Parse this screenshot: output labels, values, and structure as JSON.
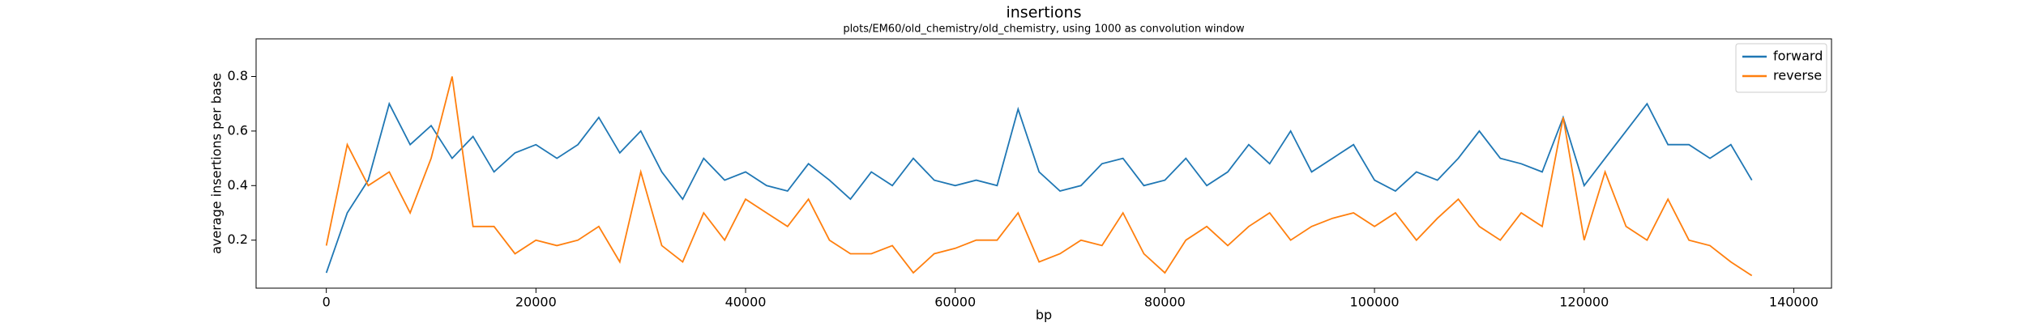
{
  "chart_data": {
    "type": "line",
    "title": "insertions",
    "subtitle": "plots/EM60/old_chemistry/old_chemistry, using 1000 as convolution window",
    "x_label": "bp",
    "y_label": "average insertions per base",
    "x": [
      0,
      2000,
      4000,
      6000,
      8000,
      10000,
      12000,
      14000,
      16000,
      18000,
      20000,
      22000,
      24000,
      26000,
      28000,
      30000,
      32000,
      34000,
      36000,
      38000,
      40000,
      42000,
      44000,
      46000,
      48000,
      50000,
      52000,
      54000,
      56000,
      58000,
      60000,
      62000,
      64000,
      66000,
      68000,
      70000,
      72000,
      74000,
      76000,
      78000,
      80000,
      82000,
      84000,
      86000,
      88000,
      90000,
      92000,
      94000,
      96000,
      98000,
      100000,
      102000,
      104000,
      106000,
      108000,
      110000,
      112000,
      114000,
      116000,
      118000,
      120000,
      122000,
      124000,
      126000,
      128000,
      130000,
      132000,
      134000,
      136000
    ],
    "series": [
      {
        "name": "forward",
        "color": "#1f77b4",
        "values": [
          0.08,
          0.3,
          0.42,
          0.7,
          0.55,
          0.62,
          0.5,
          0.58,
          0.45,
          0.52,
          0.55,
          0.5,
          0.55,
          0.65,
          0.52,
          0.6,
          0.45,
          0.35,
          0.5,
          0.42,
          0.45,
          0.4,
          0.38,
          0.48,
          0.42,
          0.35,
          0.45,
          0.4,
          0.5,
          0.42,
          0.4,
          0.42,
          0.4,
          0.68,
          0.45,
          0.38,
          0.4,
          0.48,
          0.5,
          0.4,
          0.42,
          0.5,
          0.4,
          0.45,
          0.55,
          0.48,
          0.6,
          0.45,
          0.5,
          0.55,
          0.42,
          0.38,
          0.45,
          0.42,
          0.5,
          0.6,
          0.5,
          0.48,
          0.45,
          0.65,
          0.4,
          0.5,
          0.6,
          0.7,
          0.55,
          0.55,
          0.5,
          0.55,
          0.42
        ]
      },
      {
        "name": "reverse",
        "color": "#ff7f0e",
        "values": [
          0.18,
          0.55,
          0.4,
          0.45,
          0.3,
          0.5,
          0.8,
          0.25,
          0.25,
          0.15,
          0.2,
          0.18,
          0.2,
          0.25,
          0.12,
          0.45,
          0.18,
          0.12,
          0.3,
          0.2,
          0.35,
          0.3,
          0.25,
          0.35,
          0.2,
          0.15,
          0.15,
          0.18,
          0.08,
          0.15,
          0.17,
          0.2,
          0.2,
          0.3,
          0.12,
          0.15,
          0.2,
          0.18,
          0.3,
          0.15,
          0.08,
          0.2,
          0.25,
          0.18,
          0.25,
          0.3,
          0.2,
          0.25,
          0.28,
          0.3,
          0.25,
          0.3,
          0.2,
          0.28,
          0.35,
          0.25,
          0.2,
          0.3,
          0.25,
          0.65,
          0.2,
          0.45,
          0.25,
          0.2,
          0.35,
          0.2,
          0.18,
          0.12,
          0.07
        ]
      }
    ],
    "xlim": [
      -6700,
      143600
    ],
    "ylim": [
      0.024,
      0.938
    ],
    "xticks": [
      0,
      20000,
      40000,
      60000,
      80000,
      100000,
      120000,
      140000
    ],
    "yticks": [
      0.2,
      0.4,
      0.6,
      0.8
    ],
    "grid": false,
    "legend": "upper right"
  }
}
